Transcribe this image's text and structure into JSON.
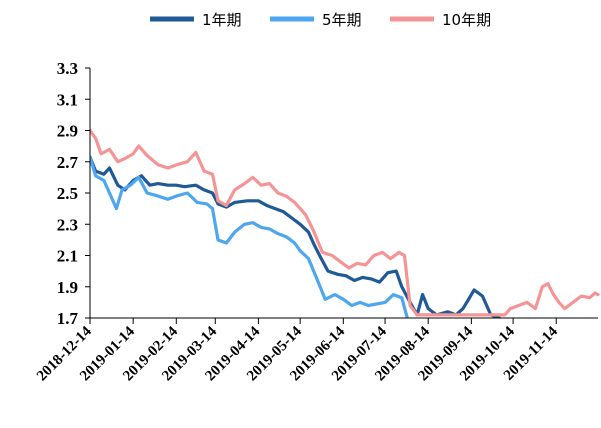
{
  "chart_data": {
    "type": "line",
    "title": "",
    "xlabel": "",
    "ylabel": "",
    "ylim": [
      1.7,
      3.3
    ],
    "yticks": [
      "3.3",
      "3.1",
      "2.9",
      "2.7",
      "2.5",
      "2.3",
      "2.1",
      "1.9",
      "1.7"
    ],
    "xticks": [
      "2018-12-14",
      "2019-01-14",
      "2019-02-14",
      "2019-03-14",
      "2019-04-14",
      "2019-05-14",
      "2019-06-14",
      "2019-07-14",
      "2019-08-14",
      "2019-09-14",
      "2019-10-14",
      "2019-11-14"
    ],
    "grid": false,
    "legend_position": "top",
    "series": [
      {
        "name": "1年期",
        "color": "#1f5a96",
        "points": [
          [
            "2018-12-14",
            2.73
          ],
          [
            "2018-12-18",
            2.64
          ],
          [
            "2018-12-24",
            2.62
          ],
          [
            "2018-12-28",
            2.66
          ],
          [
            "2019-01-03",
            2.55
          ],
          [
            "2019-01-08",
            2.52
          ],
          [
            "2019-01-14",
            2.58
          ],
          [
            "2019-01-20",
            2.61
          ],
          [
            "2019-01-26",
            2.55
          ],
          [
            "2019-02-01",
            2.56
          ],
          [
            "2019-02-08",
            2.55
          ],
          [
            "2019-02-14",
            2.55
          ],
          [
            "2019-02-20",
            2.54
          ],
          [
            "2019-02-28",
            2.55
          ],
          [
            "2019-03-06",
            2.52
          ],
          [
            "2019-03-12",
            2.5
          ],
          [
            "2019-03-16",
            2.43
          ],
          [
            "2019-03-22",
            2.41
          ],
          [
            "2019-03-28",
            2.44
          ],
          [
            "2019-04-06",
            2.45
          ],
          [
            "2019-04-14",
            2.45
          ],
          [
            "2019-04-20",
            2.42
          ],
          [
            "2019-04-26",
            2.4
          ],
          [
            "2019-05-02",
            2.38
          ],
          [
            "2019-05-08",
            2.34
          ],
          [
            "2019-05-14",
            2.3
          ],
          [
            "2019-05-20",
            2.25
          ],
          [
            "2019-05-24",
            2.17
          ],
          [
            "2019-05-28",
            2.1
          ],
          [
            "2019-06-03",
            2.0
          ],
          [
            "2019-06-10",
            1.98
          ],
          [
            "2019-06-16",
            1.97
          ],
          [
            "2019-06-22",
            1.94
          ],
          [
            "2019-06-28",
            1.96
          ],
          [
            "2019-07-04",
            1.95
          ],
          [
            "2019-07-10",
            1.93
          ],
          [
            "2019-07-16",
            1.99
          ],
          [
            "2019-07-22",
            2.0
          ],
          [
            "2019-07-26",
            1.9
          ],
          [
            "2019-08-01",
            1.8
          ],
          [
            "2019-08-06",
            1.72
          ],
          [
            "2019-08-10",
            1.85
          ],
          [
            "2019-08-14",
            1.76
          ],
          [
            "2019-08-20",
            1.72
          ],
          [
            "2019-08-28",
            1.74
          ],
          [
            "2019-09-03",
            1.72
          ],
          [
            "2019-09-08",
            1.76
          ],
          [
            "2019-09-12",
            1.82
          ],
          [
            "2019-09-16",
            1.88
          ],
          [
            "2019-09-22",
            1.84
          ],
          [
            "2019-09-28",
            1.72
          ],
          [
            "2019-10-04",
            1.7
          ]
        ]
      },
      {
        "name": "5年期",
        "color": "#4da6f0",
        "points": [
          [
            "2018-12-14",
            2.73
          ],
          [
            "2018-12-18",
            2.61
          ],
          [
            "2018-12-24",
            2.58
          ],
          [
            "2018-12-28",
            2.5
          ],
          [
            "2019-01-02",
            2.4
          ],
          [
            "2019-01-06",
            2.52
          ],
          [
            "2019-01-12",
            2.55
          ],
          [
            "2019-01-18",
            2.6
          ],
          [
            "2019-01-24",
            2.5
          ],
          [
            "2019-02-01",
            2.48
          ],
          [
            "2019-02-08",
            2.46
          ],
          [
            "2019-02-14",
            2.48
          ],
          [
            "2019-02-22",
            2.5
          ],
          [
            "2019-03-01",
            2.44
          ],
          [
            "2019-03-08",
            2.43
          ],
          [
            "2019-03-12",
            2.4
          ],
          [
            "2019-03-16",
            2.2
          ],
          [
            "2019-03-22",
            2.18
          ],
          [
            "2019-03-28",
            2.25
          ],
          [
            "2019-04-04",
            2.3
          ],
          [
            "2019-04-10",
            2.31
          ],
          [
            "2019-04-16",
            2.28
          ],
          [
            "2019-04-22",
            2.27
          ],
          [
            "2019-04-28",
            2.24
          ],
          [
            "2019-05-04",
            2.22
          ],
          [
            "2019-05-10",
            2.18
          ],
          [
            "2019-05-14",
            2.13
          ],
          [
            "2019-05-20",
            2.08
          ],
          [
            "2019-05-26",
            1.95
          ],
          [
            "2019-06-01",
            1.82
          ],
          [
            "2019-06-08",
            1.85
          ],
          [
            "2019-06-14",
            1.82
          ],
          [
            "2019-06-20",
            1.78
          ],
          [
            "2019-06-26",
            1.8
          ],
          [
            "2019-07-02",
            1.78
          ],
          [
            "2019-07-08",
            1.79
          ],
          [
            "2019-07-14",
            1.8
          ],
          [
            "2019-07-20",
            1.85
          ],
          [
            "2019-07-26",
            1.83
          ],
          [
            "2019-07-30",
            1.7
          ]
        ]
      },
      {
        "name": "10年期",
        "color": "#f59494",
        "points": [
          [
            "2018-12-14",
            2.9
          ],
          [
            "2018-12-18",
            2.85
          ],
          [
            "2018-12-22",
            2.75
          ],
          [
            "2018-12-28",
            2.78
          ],
          [
            "2019-01-03",
            2.7
          ],
          [
            "2019-01-08",
            2.72
          ],
          [
            "2019-01-14",
            2.75
          ],
          [
            "2019-01-18",
            2.8
          ],
          [
            "2019-01-24",
            2.74
          ],
          [
            "2019-02-01",
            2.68
          ],
          [
            "2019-02-08",
            2.66
          ],
          [
            "2019-02-14",
            2.68
          ],
          [
            "2019-02-22",
            2.7
          ],
          [
            "2019-02-28",
            2.76
          ],
          [
            "2019-03-06",
            2.64
          ],
          [
            "2019-03-12",
            2.62
          ],
          [
            "2019-03-16",
            2.45
          ],
          [
            "2019-03-22",
            2.42
          ],
          [
            "2019-03-28",
            2.52
          ],
          [
            "2019-04-04",
            2.56
          ],
          [
            "2019-04-10",
            2.6
          ],
          [
            "2019-04-16",
            2.55
          ],
          [
            "2019-04-22",
            2.56
          ],
          [
            "2019-04-28",
            2.5
          ],
          [
            "2019-05-04",
            2.48
          ],
          [
            "2019-05-10",
            2.44
          ],
          [
            "2019-05-14",
            2.4
          ],
          [
            "2019-05-18",
            2.36
          ],
          [
            "2019-05-24",
            2.25
          ],
          [
            "2019-05-30",
            2.12
          ],
          [
            "2019-06-06",
            2.1
          ],
          [
            "2019-06-12",
            2.06
          ],
          [
            "2019-06-18",
            2.02
          ],
          [
            "2019-06-24",
            2.05
          ],
          [
            "2019-06-30",
            2.04
          ],
          [
            "2019-07-06",
            2.1
          ],
          [
            "2019-07-12",
            2.12
          ],
          [
            "2019-07-18",
            2.08
          ],
          [
            "2019-07-24",
            2.12
          ],
          [
            "2019-07-28",
            2.1
          ],
          [
            "2019-08-01",
            1.78
          ],
          [
            "2019-08-06",
            1.72
          ],
          [
            "2019-10-08",
            1.72
          ],
          [
            "2019-10-12",
            1.76
          ],
          [
            "2019-10-18",
            1.78
          ],
          [
            "2019-10-24",
            1.8
          ],
          [
            "2019-10-30",
            1.76
          ],
          [
            "2019-11-04",
            1.9
          ],
          [
            "2019-11-08",
            1.92
          ],
          [
            "2019-11-12",
            1.85
          ],
          [
            "2019-11-16",
            1.8
          ],
          [
            "2019-11-20",
            1.76
          ],
          [
            "2019-11-26",
            1.8
          ],
          [
            "2019-12-02",
            1.84
          ],
          [
            "2019-12-08",
            1.83
          ],
          [
            "2019-12-12",
            1.86
          ],
          [
            "2019-12-14",
            1.85
          ]
        ]
      }
    ]
  }
}
